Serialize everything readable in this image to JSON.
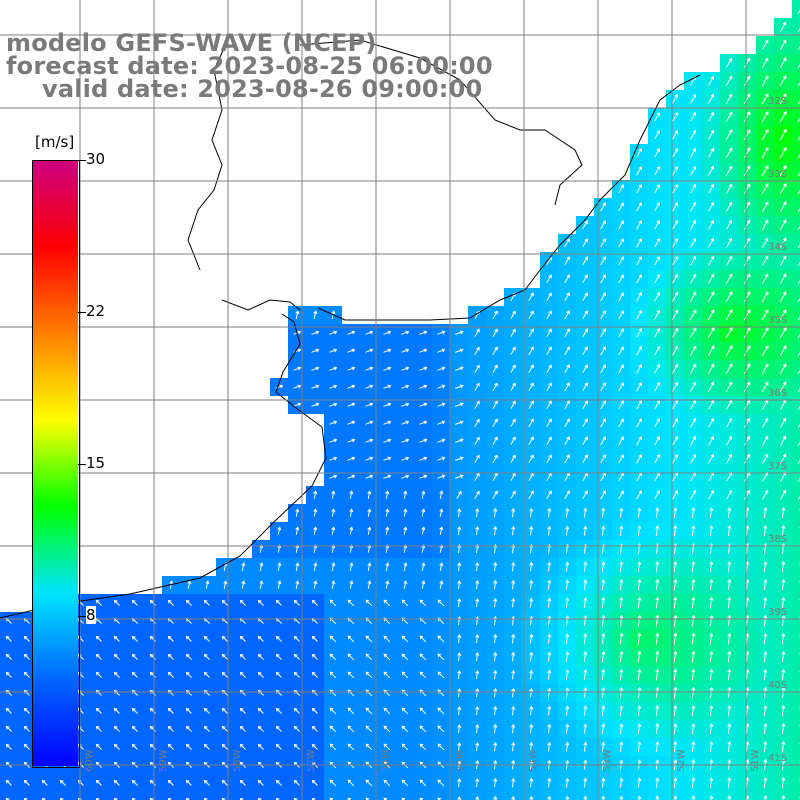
{
  "title": {
    "model": "modelo GEFS-WAVE (NCEP)",
    "forecast": "forecast date: 2023-08-25 06:00:00",
    "valid": "valid date: 2023-08-26 09:00:00"
  },
  "colorbar": {
    "units": "[m/s]",
    "ticks": [
      "30",
      "22",
      "15",
      "8"
    ],
    "tick_values": [
      30,
      22,
      15,
      8
    ],
    "min": 0,
    "max": 30,
    "colors": [
      "#0000ff",
      "#0066ff",
      "#00e5ff",
      "#00ff00",
      "#ffff00",
      "#ff8000",
      "#ff0000",
      "#cc0080"
    ]
  },
  "map": {
    "lat_labels": [
      "32S",
      "33S",
      "34S",
      "35S",
      "36S",
      "37S",
      "38S",
      "39S",
      "40S",
      "41S"
    ],
    "lon_labels": [
      "60W",
      "59W",
      "58W",
      "57W",
      "56W",
      "55W",
      "54W",
      "53W",
      "52W",
      "51W"
    ],
    "land_color": "#ffffff",
    "grid_color": "#7f7f7f",
    "arrow_color": "#ffffff"
  }
}
